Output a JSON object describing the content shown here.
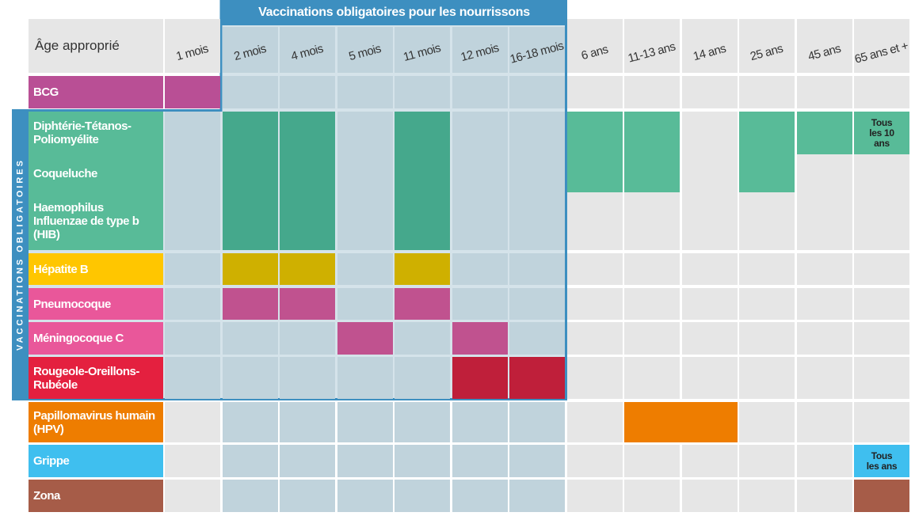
{
  "header": {
    "title": "Vaccinations obligatoires pour les nourrissons",
    "age_label": "Âge approprié",
    "side_label": "VACCINATIONS OBLIGATOIRES"
  },
  "columns": [
    "1 mois",
    "2 mois",
    "4 mois",
    "5 mois",
    "11 mois",
    "12 mois",
    "16-18 mois",
    "6 ans",
    "11-13 ans",
    "14 ans",
    "25 ans",
    "45 ans",
    "65 ans et +"
  ],
  "rows": [
    {
      "label": "BCG"
    },
    {
      "label": "Diphtérie-Tétanos-Poliomyélite"
    },
    {
      "label": "Coqueluche"
    },
    {
      "label": "Haemophilus Influenzae de type b (HIB)"
    },
    {
      "label": "Hépatite B"
    },
    {
      "label": "Pneumocoque"
    },
    {
      "label": "Méningocoque C"
    },
    {
      "label": "Rougeole-Oreillons-Rubéole"
    },
    {
      "label": "Papillomavirus humain (HPV)"
    },
    {
      "label": "Grippe"
    },
    {
      "label": "Zona"
    }
  ],
  "notes": [
    "Tous les 10 ans",
    "Tous les ans"
  ]
}
